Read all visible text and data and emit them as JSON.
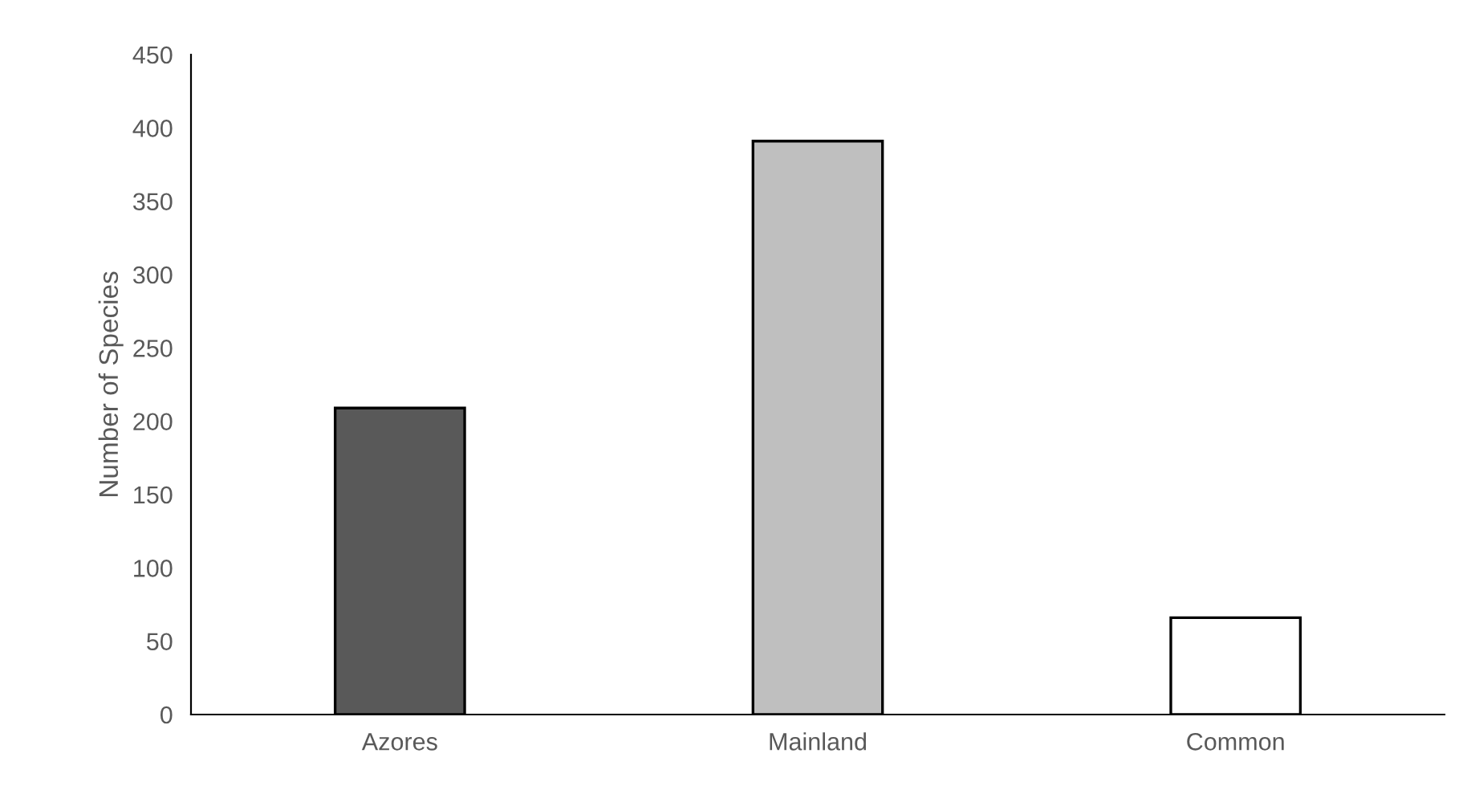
{
  "chart_data": {
    "type": "bar",
    "ylabel": "Number of Species",
    "categories": [
      "Azores",
      "Mainland",
      "Common"
    ],
    "values": [
      209,
      391,
      66
    ],
    "colors": [
      "#595959",
      "#bfbfbf",
      "#ffffff"
    ],
    "ylim": [
      0,
      450
    ],
    "yticks": [
      0,
      50,
      100,
      150,
      200,
      250,
      300,
      350,
      400,
      450
    ],
    "grid": false,
    "legend": false
  }
}
